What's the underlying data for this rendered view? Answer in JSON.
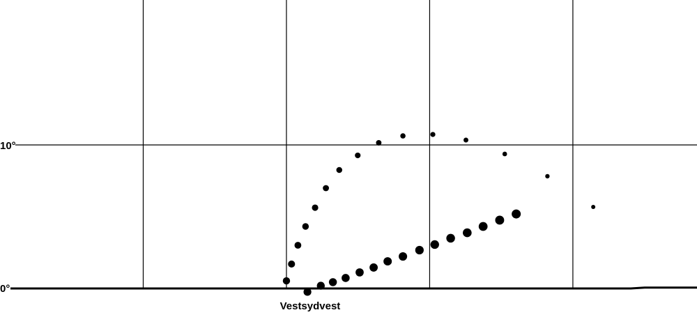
{
  "chart_data": {
    "type": "scatter",
    "title": "",
    "xlabel": "",
    "ylabel": "",
    "x_unit": "azimuth degrees",
    "xlim": [
      202.5,
      312
    ],
    "ylim": [
      -2.4,
      20.1
    ],
    "grid": true,
    "x_gridlines": [
      225,
      247.5,
      270,
      292.5
    ],
    "x_tick_labels": [
      {
        "value": 247.5,
        "label": "Vestsydvest"
      }
    ],
    "y_ticks": [
      {
        "value": 0,
        "label": "0°"
      },
      {
        "value": 10,
        "label": "10°"
      }
    ],
    "horizon_color": "#000000",
    "point_color": "#000000",
    "series": [
      {
        "x": [
          247.5,
          248.3,
          249.3,
          250.5,
          252.0,
          253.7,
          255.8,
          258.7,
          262.0,
          265.8,
          270.5,
          275.7,
          281.8,
          288.5,
          295.7
        ],
        "y": [
          0.53,
          1.7,
          3.01,
          4.32,
          5.63,
          6.99,
          8.25,
          9.27,
          10.15,
          10.63,
          10.73,
          10.34,
          9.37,
          7.82,
          5.68
        ]
      },
      {
        "x": [
          250.8,
          252.9,
          254.8,
          256.8,
          259.0,
          261.2,
          263.4,
          265.8,
          268.4,
          270.8,
          273.3,
          275.9,
          278.4,
          281.0,
          283.6
        ],
        "y": [
          -0.24,
          0.19,
          0.44,
          0.73,
          1.12,
          1.46,
          1.89,
          2.23,
          2.67,
          3.06,
          3.5,
          3.88,
          4.32,
          4.76,
          5.19
        ]
      }
    ]
  }
}
